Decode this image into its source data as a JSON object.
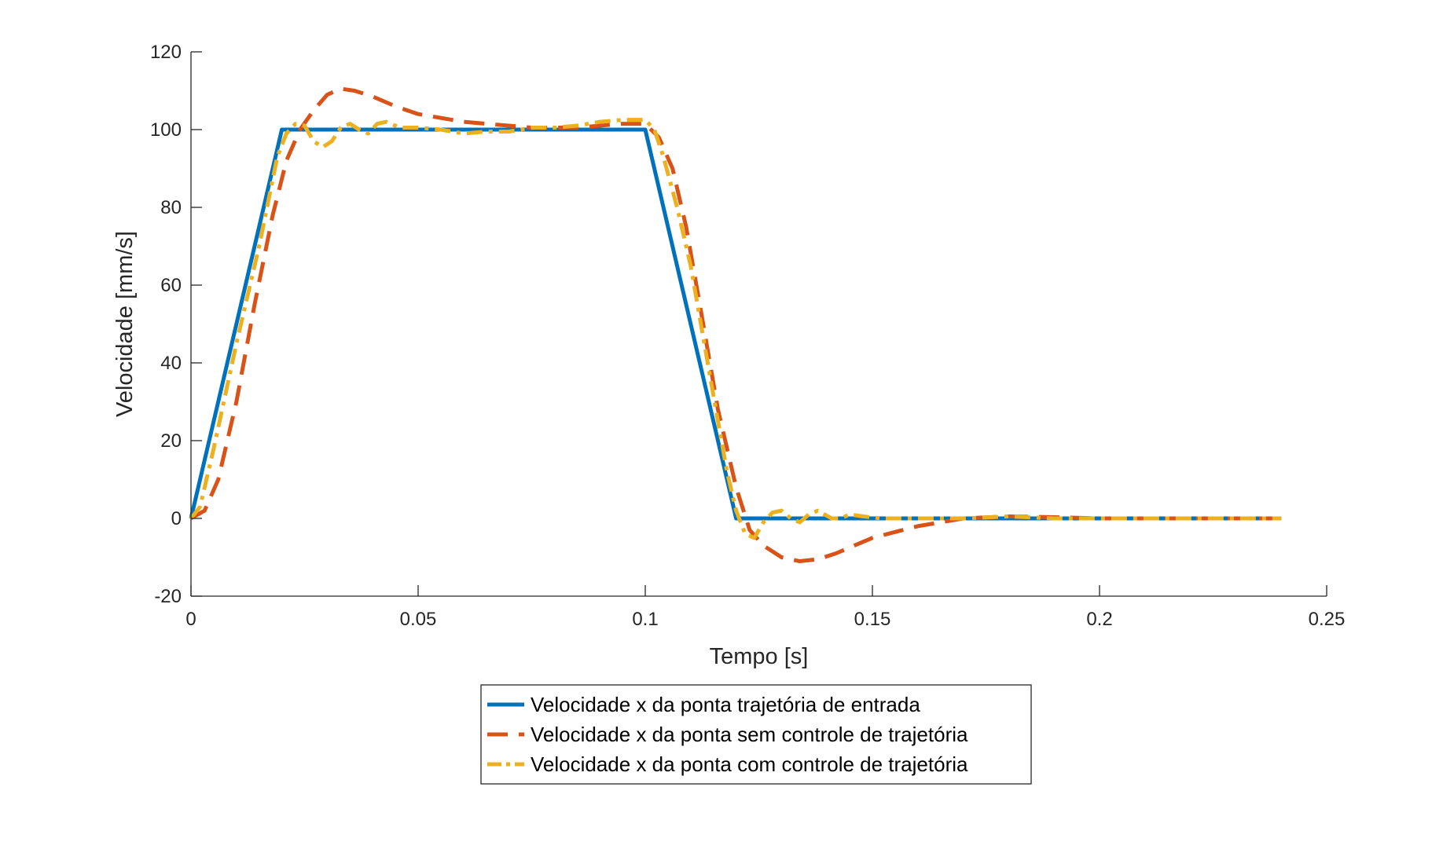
{
  "chart_data": {
    "type": "line",
    "title": "",
    "xlabel": "Tempo [s]",
    "ylabel": "Velocidade [mm/s]",
    "xlim": [
      0,
      0.25
    ],
    "ylim": [
      -20,
      120
    ],
    "xticks": [
      0,
      0.05,
      0.1,
      0.15,
      0.2,
      0.25
    ],
    "xtick_labels": [
      "0",
      "0.05",
      "0.1",
      "0.15",
      "0.2",
      "0.25"
    ],
    "yticks": [
      -20,
      0,
      20,
      40,
      60,
      80,
      100,
      120
    ],
    "ytick_labels": [
      "-20",
      "0",
      "20",
      "40",
      "60",
      "80",
      "100",
      "120"
    ],
    "grid": false,
    "legend_position": "bottom-outside",
    "series": [
      {
        "name": "Velocidade x da ponta trajetória de entrada",
        "color": "#0072BD",
        "style": "solid",
        "points": [
          [
            0,
            0
          ],
          [
            0.02,
            100
          ],
          [
            0.1,
            100
          ],
          [
            0.12,
            0
          ],
          [
            0.24,
            0
          ]
        ]
      },
      {
        "name": "Velocidade x da ponta sem controle de trajetória",
        "color": "#D95319",
        "style": "dashed",
        "points": [
          [
            0,
            0
          ],
          [
            0.003,
            2
          ],
          [
            0.006,
            10
          ],
          [
            0.01,
            30
          ],
          [
            0.014,
            55
          ],
          [
            0.018,
            78
          ],
          [
            0.021,
            92
          ],
          [
            0.024,
            100
          ],
          [
            0.027,
            105
          ],
          [
            0.03,
            109
          ],
          [
            0.033,
            110.5
          ],
          [
            0.036,
            110
          ],
          [
            0.04,
            108.5
          ],
          [
            0.045,
            106
          ],
          [
            0.05,
            104
          ],
          [
            0.055,
            103
          ],
          [
            0.06,
            102
          ],
          [
            0.065,
            101.5
          ],
          [
            0.07,
            101
          ],
          [
            0.075,
            100.5
          ],
          [
            0.08,
            100.5
          ],
          [
            0.085,
            100.5
          ],
          [
            0.09,
            101
          ],
          [
            0.095,
            101.5
          ],
          [
            0.1,
            101.5
          ],
          [
            0.103,
            98
          ],
          [
            0.106,
            90
          ],
          [
            0.109,
            75
          ],
          [
            0.112,
            55
          ],
          [
            0.116,
            28
          ],
          [
            0.12,
            8
          ],
          [
            0.123,
            -3
          ],
          [
            0.126,
            -7
          ],
          [
            0.13,
            -10
          ],
          [
            0.134,
            -11
          ],
          [
            0.138,
            -10.5
          ],
          [
            0.142,
            -9
          ],
          [
            0.146,
            -7
          ],
          [
            0.15,
            -5
          ],
          [
            0.155,
            -3.5
          ],
          [
            0.16,
            -2
          ],
          [
            0.165,
            -1
          ],
          [
            0.17,
            0
          ],
          [
            0.18,
            0.5
          ],
          [
            0.19,
            0.3
          ],
          [
            0.2,
            0
          ],
          [
            0.21,
            0
          ],
          [
            0.22,
            0
          ],
          [
            0.24,
            0
          ]
        ]
      },
      {
        "name": "Velocidade x da ponta com controle de trajetória",
        "color": "#EDB120",
        "style": "dashdot",
        "points": [
          [
            0,
            0
          ],
          [
            0.002,
            3
          ],
          [
            0.005,
            18
          ],
          [
            0.01,
            45
          ],
          [
            0.015,
            70
          ],
          [
            0.019,
            93
          ],
          [
            0.021,
            99
          ],
          [
            0.023,
            101.5
          ],
          [
            0.025,
            101
          ],
          [
            0.027,
            97
          ],
          [
            0.029,
            95.5
          ],
          [
            0.031,
            97
          ],
          [
            0.033,
            100.5
          ],
          [
            0.035,
            101.5
          ],
          [
            0.037,
            100
          ],
          [
            0.039,
            99
          ],
          [
            0.041,
            101.5
          ],
          [
            0.043,
            102
          ],
          [
            0.046,
            100.5
          ],
          [
            0.05,
            100.5
          ],
          [
            0.055,
            100
          ],
          [
            0.06,
            99
          ],
          [
            0.065,
            99.5
          ],
          [
            0.07,
            99.5
          ],
          [
            0.075,
            100.5
          ],
          [
            0.08,
            100.5
          ],
          [
            0.085,
            101
          ],
          [
            0.09,
            102
          ],
          [
            0.095,
            102.5
          ],
          [
            0.1,
            102.5
          ],
          [
            0.102,
            100
          ],
          [
            0.104,
            93
          ],
          [
            0.107,
            80
          ],
          [
            0.11,
            65
          ],
          [
            0.113,
            45
          ],
          [
            0.116,
            25
          ],
          [
            0.118,
            12
          ],
          [
            0.12,
            2
          ],
          [
            0.122,
            -4
          ],
          [
            0.124,
            -5
          ],
          [
            0.126,
            -1
          ],
          [
            0.128,
            1.5
          ],
          [
            0.13,
            2
          ],
          [
            0.132,
            0
          ],
          [
            0.134,
            -1
          ],
          [
            0.136,
            1
          ],
          [
            0.138,
            2
          ],
          [
            0.141,
            0
          ],
          [
            0.143,
            0
          ],
          [
            0.145,
            1
          ],
          [
            0.148,
            0.5
          ],
          [
            0.152,
            0
          ],
          [
            0.16,
            0
          ],
          [
            0.17,
            0
          ],
          [
            0.18,
            0.5
          ],
          [
            0.19,
            0
          ],
          [
            0.2,
            0
          ],
          [
            0.22,
            0
          ],
          [
            0.24,
            0
          ]
        ]
      }
    ]
  }
}
